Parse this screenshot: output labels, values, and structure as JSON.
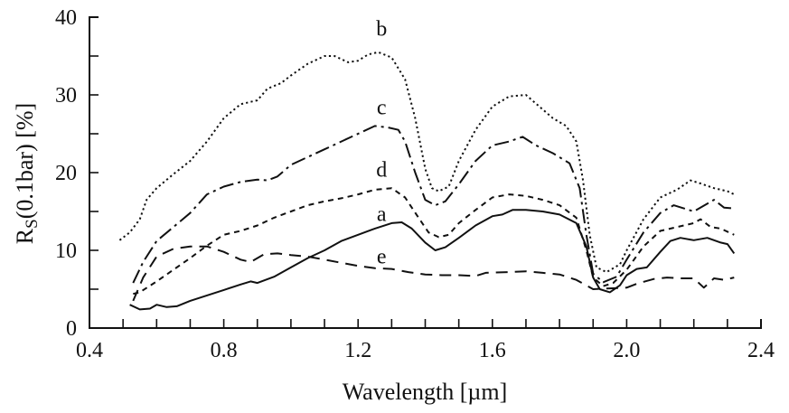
{
  "chart_data": {
    "type": "line",
    "title": "",
    "xlabel": "Wavelength [µm]",
    "ylabel_main": "R",
    "ylabel_sub": "S",
    "ylabel_rest": "(0.1bar) [%]",
    "xlim": [
      0.4,
      2.4
    ],
    "ylim": [
      0,
      40
    ],
    "x_ticks": [
      0.4,
      0.8,
      1.2,
      1.6,
      2.0,
      2.4
    ],
    "x_tick_labels": [
      "0.4",
      "0.8",
      "1.2",
      "1.6",
      "2.0",
      "2.4"
    ],
    "x_minor_step": 0.1,
    "y_ticks": [
      0,
      10,
      20,
      30,
      40
    ],
    "y_tick_labels": [
      "0",
      "10",
      "20",
      "30",
      "40"
    ],
    "y_minor_step": 5,
    "grid": false,
    "legend": "inline-labels",
    "series": [
      {
        "name": "a",
        "style": "solid",
        "label_at": [
          1.27,
          13.8
        ],
        "points": [
          [
            0.52,
            3.0
          ],
          [
            0.55,
            2.4
          ],
          [
            0.58,
            2.5
          ],
          [
            0.6,
            3.0
          ],
          [
            0.63,
            2.7
          ],
          [
            0.66,
            2.8
          ],
          [
            0.7,
            3.5
          ],
          [
            0.75,
            4.2
          ],
          [
            0.8,
            4.9
          ],
          [
            0.85,
            5.6
          ],
          [
            0.88,
            6.0
          ],
          [
            0.9,
            5.8
          ],
          [
            0.95,
            6.6
          ],
          [
            1.0,
            7.8
          ],
          [
            1.05,
            9.0
          ],
          [
            1.1,
            10.0
          ],
          [
            1.15,
            11.2
          ],
          [
            1.2,
            12.0
          ],
          [
            1.25,
            12.8
          ],
          [
            1.3,
            13.5
          ],
          [
            1.33,
            13.6
          ],
          [
            1.36,
            12.8
          ],
          [
            1.4,
            11.0
          ],
          [
            1.43,
            10.0
          ],
          [
            1.46,
            10.4
          ],
          [
            1.5,
            11.6
          ],
          [
            1.55,
            13.2
          ],
          [
            1.6,
            14.4
          ],
          [
            1.63,
            14.6
          ],
          [
            1.66,
            15.2
          ],
          [
            1.7,
            15.2
          ],
          [
            1.75,
            15.0
          ],
          [
            1.8,
            14.6
          ],
          [
            1.85,
            13.5
          ],
          [
            1.88,
            10.5
          ],
          [
            1.9,
            6.5
          ],
          [
            1.92,
            5.0
          ],
          [
            1.95,
            4.6
          ],
          [
            1.98,
            5.5
          ],
          [
            2.0,
            6.8
          ],
          [
            2.03,
            7.6
          ],
          [
            2.06,
            7.8
          ],
          [
            2.1,
            9.8
          ],
          [
            2.13,
            11.2
          ],
          [
            2.16,
            11.6
          ],
          [
            2.2,
            11.3
          ],
          [
            2.24,
            11.6
          ],
          [
            2.28,
            11.0
          ],
          [
            2.3,
            10.8
          ],
          [
            2.32,
            9.6
          ]
        ]
      },
      {
        "name": "b",
        "style": "dotted",
        "label_at": [
          1.27,
          37.6
        ],
        "points": [
          [
            0.49,
            11.3
          ],
          [
            0.52,
            12.3
          ],
          [
            0.55,
            14.0
          ],
          [
            0.57,
            16.5
          ],
          [
            0.6,
            18.0
          ],
          [
            0.65,
            19.8
          ],
          [
            0.7,
            21.5
          ],
          [
            0.75,
            24.0
          ],
          [
            0.8,
            27.0
          ],
          [
            0.85,
            28.8
          ],
          [
            0.9,
            29.3
          ],
          [
            0.93,
            30.8
          ],
          [
            0.97,
            31.5
          ],
          [
            1.0,
            32.5
          ],
          [
            1.05,
            34.0
          ],
          [
            1.1,
            35.0
          ],
          [
            1.13,
            35.0
          ],
          [
            1.17,
            34.2
          ],
          [
            1.2,
            34.4
          ],
          [
            1.23,
            35.2
          ],
          [
            1.26,
            35.5
          ],
          [
            1.3,
            34.8
          ],
          [
            1.34,
            32.0
          ],
          [
            1.37,
            27.0
          ],
          [
            1.4,
            20.5
          ],
          [
            1.42,
            18.0
          ],
          [
            1.44,
            17.6
          ],
          [
            1.47,
            18.2
          ],
          [
            1.5,
            21.5
          ],
          [
            1.55,
            25.5
          ],
          [
            1.6,
            28.5
          ],
          [
            1.65,
            29.8
          ],
          [
            1.7,
            30.0
          ],
          [
            1.74,
            28.5
          ],
          [
            1.78,
            27.0
          ],
          [
            1.82,
            26.0
          ],
          [
            1.85,
            24.0
          ],
          [
            1.87,
            19.0
          ],
          [
            1.89,
            12.0
          ],
          [
            1.91,
            7.8
          ],
          [
            1.94,
            7.2
          ],
          [
            1.98,
            8.2
          ],
          [
            2.0,
            10.0
          ],
          [
            2.05,
            14.0
          ],
          [
            2.1,
            16.8
          ],
          [
            2.15,
            17.8
          ],
          [
            2.19,
            19.0
          ],
          [
            2.22,
            18.6
          ],
          [
            2.26,
            18.0
          ],
          [
            2.3,
            17.6
          ],
          [
            2.32,
            17.2
          ]
        ]
      },
      {
        "name": "c",
        "style": "dash-dot",
        "label_at": [
          1.27,
          27.5
        ],
        "points": [
          [
            0.53,
            5.8
          ],
          [
            0.56,
            8.5
          ],
          [
            0.6,
            11.2
          ],
          [
            0.65,
            13.0
          ],
          [
            0.7,
            14.8
          ],
          [
            0.75,
            17.2
          ],
          [
            0.8,
            18.2
          ],
          [
            0.85,
            18.8
          ],
          [
            0.9,
            19.1
          ],
          [
            0.93,
            19.0
          ],
          [
            0.96,
            19.5
          ],
          [
            1.0,
            21.0
          ],
          [
            1.05,
            22.0
          ],
          [
            1.1,
            23.0
          ],
          [
            1.15,
            24.0
          ],
          [
            1.2,
            25.0
          ],
          [
            1.25,
            26.0
          ],
          [
            1.29,
            25.8
          ],
          [
            1.32,
            25.5
          ],
          [
            1.34,
            24.0
          ],
          [
            1.37,
            20.0
          ],
          [
            1.4,
            16.5
          ],
          [
            1.43,
            15.8
          ],
          [
            1.46,
            16.3
          ],
          [
            1.5,
            18.5
          ],
          [
            1.55,
            21.5
          ],
          [
            1.6,
            23.5
          ],
          [
            1.65,
            24.0
          ],
          [
            1.69,
            24.6
          ],
          [
            1.73,
            23.5
          ],
          [
            1.78,
            22.5
          ],
          [
            1.83,
            21.2
          ],
          [
            1.86,
            18.0
          ],
          [
            1.88,
            12.0
          ],
          [
            1.9,
            7.0
          ],
          [
            1.93,
            5.9
          ],
          [
            1.97,
            6.6
          ],
          [
            2.0,
            8.8
          ],
          [
            2.05,
            12.3
          ],
          [
            2.1,
            14.8
          ],
          [
            2.14,
            15.8
          ],
          [
            2.2,
            15.0
          ],
          [
            2.24,
            16.0
          ],
          [
            2.26,
            16.5
          ],
          [
            2.29,
            15.5
          ],
          [
            2.32,
            15.4
          ]
        ]
      },
      {
        "name": "d",
        "style": "short-dashed",
        "label_at": [
          1.27,
          19.5
        ],
        "points": [
          [
            0.53,
            4.4
          ],
          [
            0.55,
            4.6
          ],
          [
            0.6,
            6.0
          ],
          [
            0.65,
            7.5
          ],
          [
            0.7,
            9.0
          ],
          [
            0.75,
            10.6
          ],
          [
            0.8,
            12.0
          ],
          [
            0.85,
            12.5
          ],
          [
            0.9,
            13.2
          ],
          [
            0.95,
            14.2
          ],
          [
            1.0,
            15.0
          ],
          [
            1.05,
            15.8
          ],
          [
            1.1,
            16.3
          ],
          [
            1.15,
            16.7
          ],
          [
            1.2,
            17.2
          ],
          [
            1.25,
            17.8
          ],
          [
            1.3,
            18.0
          ],
          [
            1.34,
            16.8
          ],
          [
            1.38,
            14.2
          ],
          [
            1.41,
            12.3
          ],
          [
            1.44,
            11.7
          ],
          [
            1.47,
            12.0
          ],
          [
            1.5,
            13.5
          ],
          [
            1.55,
            15.2
          ],
          [
            1.6,
            16.8
          ],
          [
            1.65,
            17.2
          ],
          [
            1.7,
            17.0
          ],
          [
            1.75,
            16.5
          ],
          [
            1.8,
            15.8
          ],
          [
            1.85,
            14.2
          ],
          [
            1.88,
            10.0
          ],
          [
            1.9,
            6.5
          ],
          [
            1.93,
            5.4
          ],
          [
            1.96,
            5.8
          ],
          [
            2.0,
            7.5
          ],
          [
            2.05,
            10.5
          ],
          [
            2.1,
            12.5
          ],
          [
            2.15,
            13.0
          ],
          [
            2.2,
            13.5
          ],
          [
            2.22,
            14.0
          ],
          [
            2.25,
            13.0
          ],
          [
            2.28,
            12.8
          ],
          [
            2.32,
            12.0
          ]
        ]
      },
      {
        "name": "e",
        "style": "long-dashed",
        "label_at": [
          1.27,
          8.3
        ],
        "points": [
          [
            0.53,
            3.5
          ],
          [
            0.56,
            6.5
          ],
          [
            0.6,
            9.2
          ],
          [
            0.65,
            10.2
          ],
          [
            0.7,
            10.5
          ],
          [
            0.75,
            10.5
          ],
          [
            0.8,
            9.8
          ],
          [
            0.85,
            8.8
          ],
          [
            0.88,
            8.5
          ],
          [
            0.92,
            9.5
          ],
          [
            0.96,
            9.6
          ],
          [
            1.0,
            9.4
          ],
          [
            1.05,
            9.2
          ],
          [
            1.1,
            8.8
          ],
          [
            1.15,
            8.4
          ],
          [
            1.2,
            8.0
          ],
          [
            1.25,
            7.7
          ],
          [
            1.3,
            7.6
          ],
          [
            1.35,
            7.2
          ],
          [
            1.4,
            6.9
          ],
          [
            1.45,
            6.8
          ],
          [
            1.5,
            6.8
          ],
          [
            1.55,
            6.7
          ],
          [
            1.58,
            7.1
          ],
          [
            1.65,
            7.2
          ],
          [
            1.7,
            7.3
          ],
          [
            1.75,
            7.1
          ],
          [
            1.8,
            6.9
          ],
          [
            1.85,
            6.2
          ],
          [
            1.9,
            5.0
          ],
          [
            1.95,
            5.1
          ],
          [
            2.0,
            5.2
          ],
          [
            2.03,
            5.7
          ],
          [
            2.08,
            6.3
          ],
          [
            2.12,
            6.5
          ],
          [
            2.16,
            6.4
          ],
          [
            2.2,
            6.4
          ],
          [
            2.23,
            5.2
          ],
          [
            2.26,
            6.4
          ],
          [
            2.29,
            6.2
          ],
          [
            2.32,
            6.5
          ]
        ]
      }
    ]
  }
}
